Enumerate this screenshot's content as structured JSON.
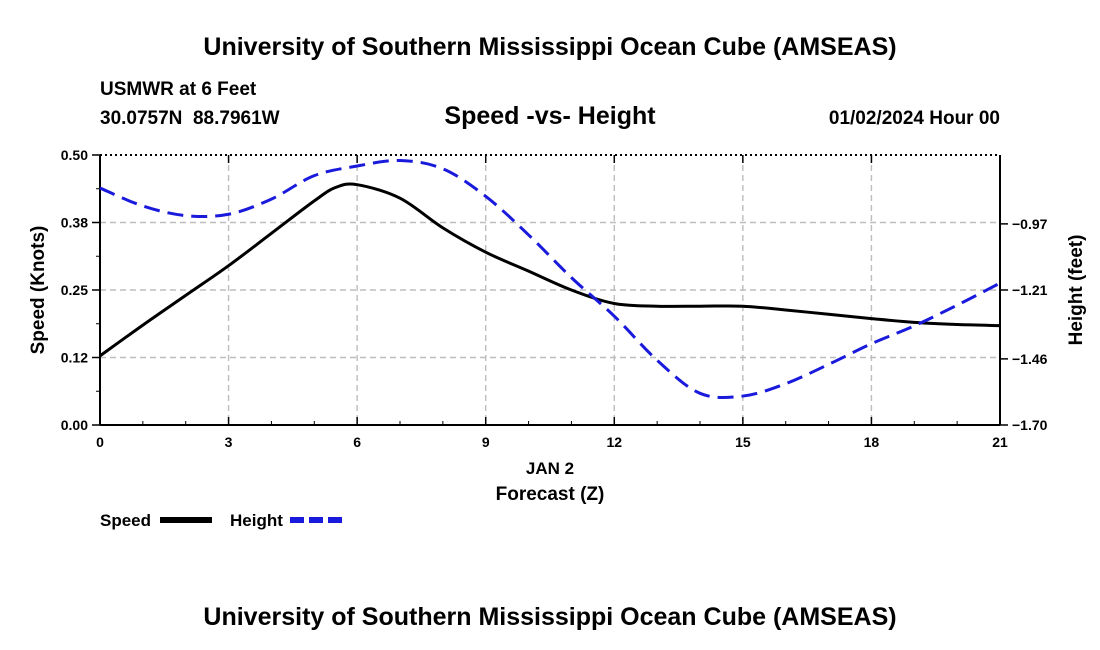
{
  "header": {
    "title": "University of Southern Mississippi Ocean Cube (AMSEAS)",
    "station": "USMWR at 6 Feet",
    "coords": "30.0757N  88.7961W",
    "subtitle": "Speed -vs- Height",
    "datetime": "01/02/2024 Hour 00"
  },
  "footer": {
    "title": "University of Southern Mississippi Ocean Cube (AMSEAS)"
  },
  "chart_data": {
    "type": "line",
    "title": "Speed -vs- Height",
    "xlabel": "Forecast (Z)",
    "xlabel_date": "JAN 2",
    "ylabel_left": "Speed (Knots)",
    "ylabel_right": "Height (feet)",
    "xlim": [
      0,
      21
    ],
    "ylim_left": [
      0,
      0.5
    ],
    "ylim_right": [
      -1.7,
      -0.72
    ],
    "grid": true,
    "legend_position": "bottom-left",
    "x_ticks": [
      0,
      3,
      6,
      9,
      12,
      15,
      18,
      21
    ],
    "x_tick_labels": [
      "0",
      "3",
      "6",
      "9",
      "12",
      "15",
      "18",
      "21"
    ],
    "y_left_ticks": [
      0,
      0.125,
      0.25,
      0.375,
      0.5
    ],
    "y_left_tick_labels": [
      "0.00",
      "0.12",
      "0.25",
      "0.38",
      "0.50"
    ],
    "y_right_ticks": [
      -1.7,
      -1.46,
      -1.21,
      -0.97
    ],
    "y_right_tick_labels": [
      "−1.70",
      "−1.46",
      "−1.21",
      "−0.97"
    ],
    "series": [
      {
        "name": "Speed",
        "axis": "left",
        "color": "#000000",
        "dash": false,
        "x": [
          0,
          1,
          2,
          3,
          4,
          5,
          5.5,
          6,
          7,
          8,
          9,
          10,
          11,
          12,
          13,
          14,
          15,
          16,
          17,
          18,
          19,
          20,
          21
        ],
        "values": [
          0.128,
          0.185,
          0.24,
          0.295,
          0.355,
          0.415,
          0.44,
          0.445,
          0.42,
          0.365,
          0.32,
          0.285,
          0.25,
          0.225,
          0.22,
          0.22,
          0.22,
          0.213,
          0.205,
          0.197,
          0.19,
          0.186,
          0.184
        ]
      },
      {
        "name": "Height",
        "axis": "right",
        "color": "#1a1adc",
        "dash": true,
        "x": [
          0,
          1,
          2,
          3,
          4,
          5,
          6,
          7,
          8,
          9,
          10,
          11,
          12,
          13,
          14,
          15,
          16,
          17,
          18,
          19,
          20,
          21
        ],
        "values": [
          -0.84,
          -0.905,
          -0.94,
          -0.935,
          -0.88,
          -0.795,
          -0.76,
          -0.74,
          -0.77,
          -0.87,
          -1.01,
          -1.165,
          -1.305,
          -1.465,
          -1.585,
          -1.595,
          -1.55,
          -1.48,
          -1.405,
          -1.34,
          -1.265,
          -1.185
        ]
      }
    ],
    "legend": [
      {
        "label": "Speed",
        "color": "#000000",
        "dash": false
      },
      {
        "label": "Height",
        "color": "#1a1adc",
        "dash": true
      }
    ]
  }
}
